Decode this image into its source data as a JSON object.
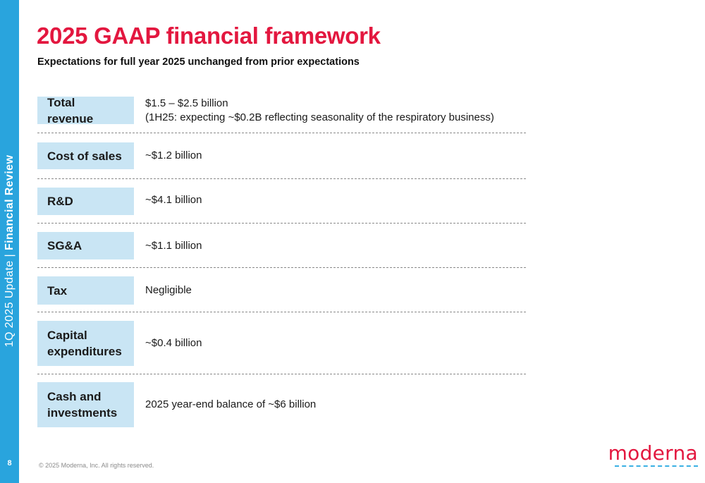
{
  "sidebar": {
    "section_thin": "1Q 2025 Update |",
    "section_bold": "Financial Review",
    "page_number": "8"
  },
  "header": {
    "title": "2025 GAAP financial framework",
    "subtitle": "Expectations for full year 2025 unchanged from prior expectations"
  },
  "rows": [
    {
      "label": "Total revenue",
      "value_line1": "$1.5 – $2.5 billion",
      "value_line2": "(1H25: expecting ~$0.2B reflecting seasonality of the respiratory business)"
    },
    {
      "label": "Cost of sales",
      "value": "~$1.2 billion"
    },
    {
      "label": "R&D",
      "value": "~$4.1 billion"
    },
    {
      "label": "SG&A",
      "value": "~$1.1 billion"
    },
    {
      "label": "Tax",
      "value": "Negligible"
    },
    {
      "label_line1": "Capital",
      "label_line2": "expenditures",
      "value": "~$0.4 billion"
    },
    {
      "label_line1": "Cash and",
      "label_line2": "investments",
      "value": "2025 year-end balance of ~$6 billion"
    }
  ],
  "footer": {
    "copyright": "© 2025 Moderna, Inc. All rights reserved.",
    "logo_text": "moderna"
  },
  "colors": {
    "sidebar": "#29a4dd",
    "title": "#e3173f",
    "label_fill": "#c9e5f4"
  }
}
